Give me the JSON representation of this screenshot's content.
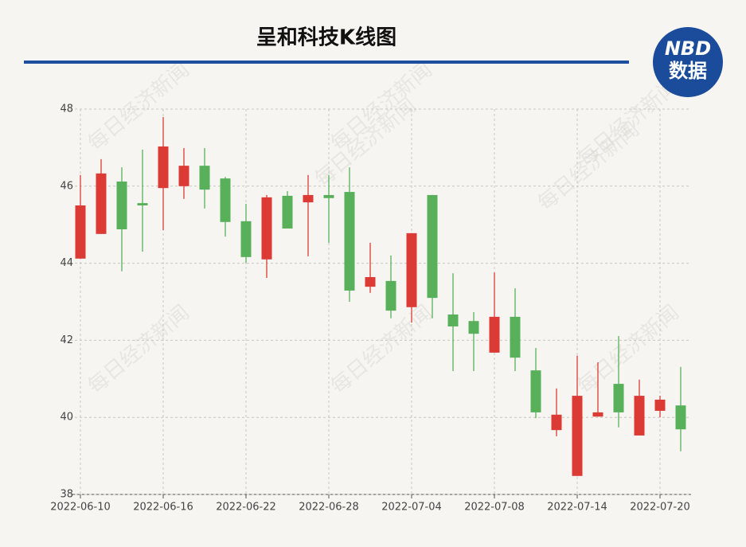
{
  "title": "呈和科技K线图",
  "logo": {
    "top": "NBD",
    "bottom": "数据"
  },
  "watermark": "每日经济新闻",
  "chart_data": {
    "type": "candlestick",
    "categories": [
      "2022-06-10",
      null,
      null,
      null,
      "2022-06-16",
      null,
      null,
      null,
      "2022-06-22",
      null,
      null,
      null,
      "2022-06-28",
      null,
      null,
      null,
      "2022-07-04",
      null,
      null,
      null,
      "2022-07-08",
      null,
      null,
      null,
      "2022-07-14",
      null,
      null,
      null,
      "2022-07-20",
      null
    ],
    "open": [
      44.12,
      44.76,
      46.12,
      45.56,
      45.95,
      46.0,
      46.53,
      46.2,
      45.09,
      44.1,
      45.75,
      45.58,
      45.77,
      45.85,
      43.39,
      43.54,
      42.86,
      45.77,
      42.67,
      42.5,
      41.68,
      42.61,
      41.22,
      39.67,
      38.48,
      40.02,
      40.87,
      39.53,
      40.17,
      40.31
    ],
    "high": [
      46.29,
      46.7,
      46.49,
      46.95,
      47.79,
      46.99,
      46.99,
      46.24,
      45.54,
      45.77,
      45.87,
      46.29,
      46.29,
      46.49,
      44.53,
      44.2,
      44.78,
      45.77,
      43.74,
      42.73,
      43.76,
      43.35,
      41.8,
      40.75,
      41.6,
      41.43,
      42.11,
      40.98,
      40.56,
      41.31
    ],
    "low": [
      44.12,
      44.76,
      43.79,
      44.3,
      44.86,
      45.67,
      45.42,
      44.69,
      44.01,
      43.62,
      44.9,
      44.18,
      44.53,
      43.0,
      43.23,
      42.57,
      42.46,
      42.57,
      41.2,
      41.2,
      41.68,
      41.2,
      39.98,
      39.51,
      38.48,
      40.02,
      39.74,
      39.53,
      40.0,
      39.12
    ],
    "close": [
      45.5,
      46.33,
      44.88,
      45.5,
      47.03,
      46.53,
      45.91,
      45.07,
      44.16,
      45.71,
      44.9,
      45.77,
      45.69,
      43.29,
      43.64,
      42.77,
      44.78,
      43.1,
      42.36,
      42.17,
      42.61,
      41.55,
      40.13,
      40.07,
      40.56,
      40.13,
      40.13,
      40.56,
      40.46,
      39.69
    ],
    "up_color": "#dc3b35",
    "down_color": "#58b15a",
    "ylim": [
      38,
      48
    ],
    "yticks": [
      38,
      40,
      42,
      44,
      46,
      48
    ],
    "grid": true
  }
}
